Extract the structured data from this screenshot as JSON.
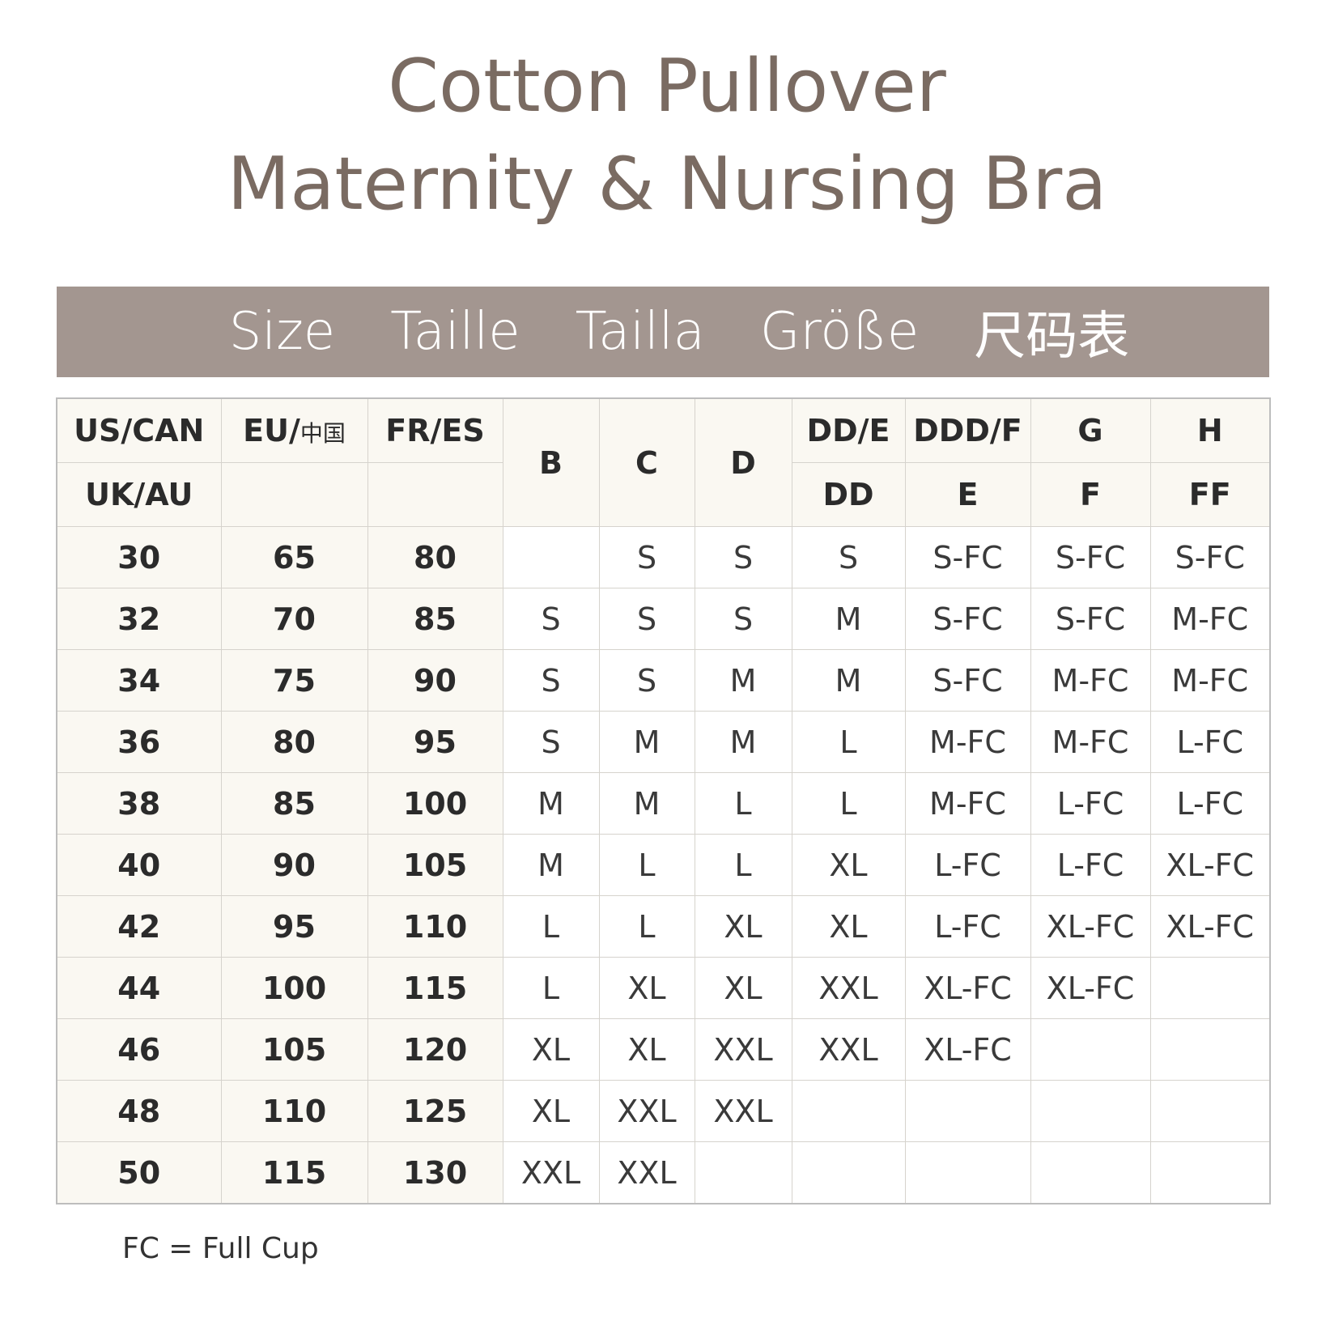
{
  "title": {
    "line1": "Cotton Pullover",
    "line2": "Maternity & Nursing Bra"
  },
  "banner": {
    "labels": [
      "Size",
      "Taille",
      "Tailla",
      "Größe",
      "尺码表"
    ]
  },
  "colors": {
    "title": "#7a6b62",
    "banner": "#a39690",
    "band_cells": "#faf8f2"
  },
  "table": {
    "header_row1": {
      "us_can": "US/CAN",
      "eu_prefix": "EU/",
      "eu_cn": "中国",
      "fr_es": "FR/ES",
      "b": "B",
      "c": "C",
      "d": "D",
      "dd_e": "DD/E",
      "ddd_f": "DDD/F",
      "g": "G",
      "h": "H"
    },
    "header_row2": {
      "uk_au": "UK/AU",
      "dd": "DD",
      "e": "E",
      "f": "F",
      "ff": "FF"
    },
    "rows": [
      {
        "us": "30",
        "eu": "65",
        "fr": "80",
        "sizes": [
          "",
          "S",
          "S",
          "S",
          "S-FC",
          "S-FC",
          "S-FC"
        ]
      },
      {
        "us": "32",
        "eu": "70",
        "fr": "85",
        "sizes": [
          "S",
          "S",
          "S",
          "M",
          "S-FC",
          "S-FC",
          "M-FC"
        ]
      },
      {
        "us": "34",
        "eu": "75",
        "fr": "90",
        "sizes": [
          "S",
          "S",
          "M",
          "M",
          "S-FC",
          "M-FC",
          "M-FC"
        ]
      },
      {
        "us": "36",
        "eu": "80",
        "fr": "95",
        "sizes": [
          "S",
          "M",
          "M",
          "L",
          "M-FC",
          "M-FC",
          "L-FC"
        ]
      },
      {
        "us": "38",
        "eu": "85",
        "fr": "100",
        "sizes": [
          "M",
          "M",
          "L",
          "L",
          "M-FC",
          "L-FC",
          "L-FC"
        ]
      },
      {
        "us": "40",
        "eu": "90",
        "fr": "105",
        "sizes": [
          "M",
          "L",
          "L",
          "XL",
          "L-FC",
          "L-FC",
          "XL-FC"
        ]
      },
      {
        "us": "42",
        "eu": "95",
        "fr": "110",
        "sizes": [
          "L",
          "L",
          "XL",
          "XL",
          "L-FC",
          "XL-FC",
          "XL-FC"
        ]
      },
      {
        "us": "44",
        "eu": "100",
        "fr": "115",
        "sizes": [
          "L",
          "XL",
          "XL",
          "XXL",
          "XL-FC",
          "XL-FC",
          ""
        ]
      },
      {
        "us": "46",
        "eu": "105",
        "fr": "120",
        "sizes": [
          "XL",
          "XL",
          "XXL",
          "XXL",
          "XL-FC",
          "",
          ""
        ]
      },
      {
        "us": "48",
        "eu": "110",
        "fr": "125",
        "sizes": [
          "XL",
          "XXL",
          "XXL",
          "",
          "",
          "",
          ""
        ]
      },
      {
        "us": "50",
        "eu": "115",
        "fr": "130",
        "sizes": [
          "XXL",
          "XXL",
          "",
          "",
          "",
          "",
          ""
        ]
      }
    ]
  },
  "footer": {
    "note": "FC = Full Cup"
  }
}
